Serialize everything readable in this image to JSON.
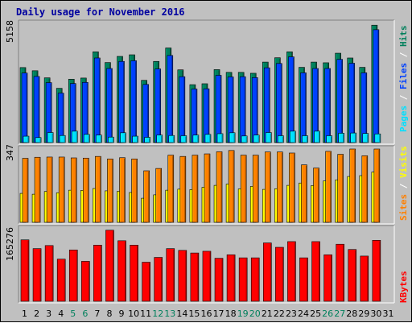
{
  "title": "Daily usage for November 2016",
  "colors": {
    "background": "#c0c0c0",
    "hits": "#00805c",
    "files": "#0040ff",
    "pages": "#00e0ff",
    "visits": "#ffff00",
    "sites": "#ff8000",
    "kbytes": "#ff0000",
    "weekend_label": "#00805c",
    "weekday_label": "#000000",
    "separator": "#ffffff"
  },
  "legends": {
    "pages": "Pages",
    "files": "Files",
    "hits": "Hits",
    "sites": "Sites",
    "visits": "Visits",
    "kbytes": "KBytes",
    "sep": " / "
  },
  "chart_data": [
    {
      "type": "bar",
      "name": "hits-files-pages",
      "ymax_label": "5158",
      "ylim": [
        0,
        5158
      ],
      "x": [
        1,
        2,
        3,
        4,
        5,
        6,
        7,
        8,
        9,
        10,
        11,
        12,
        13,
        14,
        15,
        16,
        17,
        18,
        19,
        20,
        21,
        22,
        23,
        24,
        25,
        26,
        27,
        28,
        29,
        30,
        31
      ],
      "weekend_days": [
        5,
        6,
        12,
        13,
        19,
        20,
        26,
        27
      ],
      "series": [
        {
          "name": "Hits",
          "values": [
            3290,
            3150,
            2840,
            2380,
            2780,
            2830,
            3980,
            3510,
            3780,
            3850,
            2730,
            3560,
            4150,
            3190,
            2540,
            2580,
            3200,
            3080,
            3080,
            3040,
            3530,
            3720,
            3980,
            3300,
            3530,
            3500,
            3920,
            3710,
            3300,
            5150,
            0
          ]
        },
        {
          "name": "Files",
          "values": [
            3050,
            2900,
            2630,
            2170,
            2590,
            2640,
            3710,
            3250,
            3560,
            3590,
            2550,
            3230,
            3820,
            2890,
            2350,
            2360,
            2950,
            2880,
            2890,
            2850,
            3280,
            3470,
            3760,
            3060,
            3250,
            3250,
            3650,
            3480,
            3060,
            4950,
            0
          ]
        },
        {
          "name": "Pages",
          "values": [
            280,
            220,
            440,
            310,
            500,
            360,
            330,
            240,
            430,
            280,
            230,
            330,
            310,
            300,
            330,
            360,
            390,
            430,
            290,
            330,
            440,
            300,
            500,
            300,
            500,
            300,
            410,
            420,
            400,
            380,
            0
          ]
        }
      ]
    },
    {
      "type": "bar",
      "name": "sites-visits",
      "ymax_label": "347",
      "ylim": [
        0,
        347
      ],
      "x": [
        1,
        2,
        3,
        4,
        5,
        6,
        7,
        8,
        9,
        10,
        11,
        12,
        13,
        14,
        15,
        16,
        17,
        18,
        19,
        20,
        21,
        22,
        23,
        24,
        25,
        26,
        27,
        28,
        29,
        30,
        31
      ],
      "series": [
        {
          "name": "Sites",
          "values": [
            303,
            308,
            309,
            309,
            305,
            304,
            312,
            300,
            306,
            300,
            244,
            255,
            318,
            312,
            318,
            324,
            334,
            340,
            318,
            318,
            333,
            333,
            328,
            272,
            257,
            336,
            322,
            347,
            315,
            347,
            0
          ]
        },
        {
          "name": "Visits",
          "values": [
            137,
            133,
            146,
            140,
            152,
            151,
            160,
            149,
            147,
            141,
            114,
            130,
            152,
            157,
            155,
            166,
            175,
            181,
            158,
            170,
            156,
            159,
            175,
            186,
            174,
            196,
            201,
            217,
            221,
            238,
            0
          ]
        }
      ]
    },
    {
      "type": "bar",
      "name": "kbytes",
      "ymax_label": "165276",
      "ylim": [
        0,
        165276
      ],
      "x": [
        1,
        2,
        3,
        4,
        5,
        6,
        7,
        8,
        9,
        10,
        11,
        12,
        13,
        14,
        15,
        16,
        17,
        18,
        19,
        20,
        21,
        22,
        23,
        24,
        25,
        26,
        27,
        28,
        29,
        30,
        31
      ],
      "series": [
        {
          "name": "KBytes",
          "values": [
            140000,
            120000,
            127000,
            96000,
            117000,
            91000,
            128000,
            162000,
            138000,
            128000,
            89000,
            100000,
            120000,
            116000,
            110000,
            114000,
            98000,
            106000,
            99000,
            99000,
            133000,
            123000,
            136000,
            99000,
            136000,
            106000,
            130000,
            118000,
            103000,
            139000,
            0
          ]
        }
      ]
    }
  ]
}
